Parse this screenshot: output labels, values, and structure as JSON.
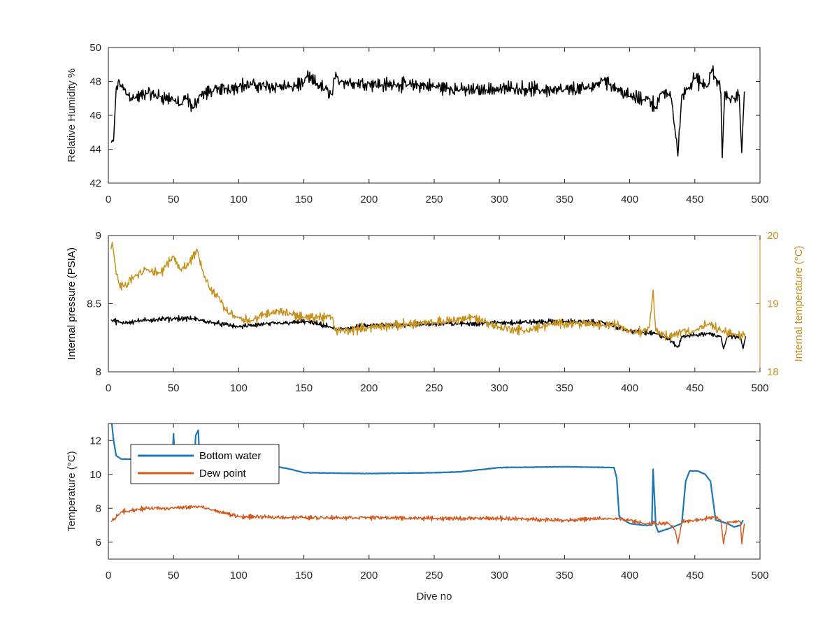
{
  "chart_data": [
    {
      "type": "line",
      "title": "",
      "xlabel": "",
      "ylabel": "Relative Humidity %",
      "xlim": [
        0,
        500
      ],
      "ylim": [
        42,
        50
      ],
      "xticks": [
        "0",
        "50",
        "100",
        "150",
        "200",
        "250",
        "300",
        "350",
        "400",
        "450",
        "500"
      ],
      "yticks": [
        "42",
        "44",
        "46",
        "48",
        "50"
      ],
      "grid": false,
      "series": [
        {
          "color": "#000000",
          "axis": "left",
          "noise": 0.55,
          "points": [
            [
              2,
              44.4
            ],
            [
              4,
              44.5
            ],
            [
              6,
              47.6
            ],
            [
              8,
              48.1
            ],
            [
              10,
              47.7
            ],
            [
              15,
              47.2
            ],
            [
              20,
              47.0
            ],
            [
              30,
              47.3
            ],
            [
              40,
              47.1
            ],
            [
              50,
              46.9
            ],
            [
              55,
              46.6
            ],
            [
              60,
              47.0
            ],
            [
              65,
              46.4
            ],
            [
              70,
              47.2
            ],
            [
              80,
              47.4
            ],
            [
              90,
              47.6
            ],
            [
              100,
              47.7
            ],
            [
              110,
              47.8
            ],
            [
              120,
              47.7
            ],
            [
              130,
              47.7
            ],
            [
              140,
              47.7
            ],
            [
              150,
              47.9
            ],
            [
              152,
              48.3
            ],
            [
              172,
              47.2
            ],
            [
              173,
              48.2
            ],
            [
              180,
              48.0
            ],
            [
              190,
              47.9
            ],
            [
              200,
              47.9
            ],
            [
              210,
              47.8
            ],
            [
              220,
              47.8
            ],
            [
              230,
              47.8
            ],
            [
              250,
              47.7
            ],
            [
              270,
              47.5
            ],
            [
              290,
              47.5
            ],
            [
              310,
              47.6
            ],
            [
              330,
              47.5
            ],
            [
              350,
              47.5
            ],
            [
              370,
              47.6
            ],
            [
              380,
              48.1
            ],
            [
              390,
              47.6
            ],
            [
              400,
              47.1
            ],
            [
              410,
              46.9
            ],
            [
              415,
              47.0
            ],
            [
              420,
              46.4
            ],
            [
              425,
              47.4
            ],
            [
              430,
              47.2
            ],
            [
              432,
              47.0
            ],
            [
              435,
              45.0
            ],
            [
              437,
              43.6
            ],
            [
              440,
              47.2
            ],
            [
              445,
              47.6
            ],
            [
              450,
              48.2
            ],
            [
              455,
              47.9
            ],
            [
              460,
              47.7
            ],
            [
              463,
              48.7
            ],
            [
              466,
              48.2
            ],
            [
              468,
              48.0
            ],
            [
              470,
              47.3
            ],
            [
              471,
              43.5
            ],
            [
              473,
              47.4
            ],
            [
              476,
              47.0
            ],
            [
              480,
              47.0
            ],
            [
              484,
              47.2
            ],
            [
              486,
              43.8
            ],
            [
              488,
              47.4
            ]
          ]
        }
      ]
    },
    {
      "type": "line",
      "title": "",
      "xlabel": "",
      "ylabel": "Internal pressure (PSIA)",
      "y2label": "Internal temperature (°C)",
      "xlim": [
        0,
        500
      ],
      "ylim": [
        8,
        9
      ],
      "y2lim": [
        18,
        20
      ],
      "xticks": [
        "0",
        "50",
        "100",
        "150",
        "200",
        "250",
        "300",
        "350",
        "400",
        "450",
        "500"
      ],
      "yticks": [
        "8",
        "8.5",
        "9"
      ],
      "y2ticks": [
        "18",
        "19",
        "20"
      ],
      "grid": false,
      "series": [
        {
          "color": "#000000",
          "axis": "left",
          "noise": 0.025,
          "points": [
            [
              2,
              8.38
            ],
            [
              10,
              8.36
            ],
            [
              30,
              8.38
            ],
            [
              50,
              8.39
            ],
            [
              65,
              8.39
            ],
            [
              80,
              8.36
            ],
            [
              100,
              8.33
            ],
            [
              120,
              8.35
            ],
            [
              140,
              8.36
            ],
            [
              152,
              8.37
            ],
            [
              170,
              8.33
            ],
            [
              175,
              8.31
            ],
            [
              200,
              8.34
            ],
            [
              250,
              8.35
            ],
            [
              300,
              8.36
            ],
            [
              350,
              8.37
            ],
            [
              380,
              8.36
            ],
            [
              400,
              8.3
            ],
            [
              420,
              8.28
            ],
            [
              430,
              8.24
            ],
            [
              437,
              8.18
            ],
            [
              440,
              8.26
            ],
            [
              450,
              8.27
            ],
            [
              460,
              8.28
            ],
            [
              470,
              8.26
            ],
            [
              472,
              8.17
            ],
            [
              475,
              8.26
            ],
            [
              485,
              8.26
            ],
            [
              487,
              8.17
            ],
            [
              489,
              8.26
            ]
          ]
        },
        {
          "color": "#c7911e",
          "axis": "right",
          "noise": 0.09,
          "points": [
            [
              2,
              19.8
            ],
            [
              3,
              19.9
            ],
            [
              5,
              19.6
            ],
            [
              8,
              19.3
            ],
            [
              12,
              19.25
            ],
            [
              20,
              19.4
            ],
            [
              30,
              19.5
            ],
            [
              40,
              19.45
            ],
            [
              50,
              19.7
            ],
            [
              55,
              19.5
            ],
            [
              62,
              19.6
            ],
            [
              68,
              19.8
            ],
            [
              72,
              19.5
            ],
            [
              78,
              19.2
            ],
            [
              85,
              19.1
            ],
            [
              90,
              18.9
            ],
            [
              100,
              18.8
            ],
            [
              110,
              18.75
            ],
            [
              120,
              18.85
            ],
            [
              130,
              18.9
            ],
            [
              140,
              18.85
            ],
            [
              150,
              18.8
            ],
            [
              172,
              18.8
            ],
            [
              174,
              18.6
            ],
            [
              180,
              18.6
            ],
            [
              200,
              18.65
            ],
            [
              230,
              18.7
            ],
            [
              250,
              18.72
            ],
            [
              280,
              18.8
            ],
            [
              300,
              18.65
            ],
            [
              320,
              18.6
            ],
            [
              340,
              18.7
            ],
            [
              360,
              18.72
            ],
            [
              380,
              18.68
            ],
            [
              390,
              18.7
            ],
            [
              400,
              18.6
            ],
            [
              410,
              18.6
            ],
            [
              415,
              18.65
            ],
            [
              418,
              19.2
            ],
            [
              420,
              18.6
            ],
            [
              430,
              18.5
            ],
            [
              440,
              18.6
            ],
            [
              450,
              18.6
            ],
            [
              460,
              18.7
            ],
            [
              470,
              18.6
            ],
            [
              480,
              18.55
            ],
            [
              489,
              18.5
            ]
          ]
        }
      ]
    },
    {
      "type": "line",
      "title": "",
      "xlabel": "Dive no",
      "ylabel": "Temperature (°C)",
      "xlim": [
        0,
        500
      ],
      "ylim": [
        5,
        13
      ],
      "xticks": [
        "0",
        "50",
        "100",
        "150",
        "200",
        "250",
        "300",
        "350",
        "400",
        "450",
        "500"
      ],
      "yticks": [
        "6",
        "8",
        "10",
        "12"
      ],
      "grid": false,
      "legend_position": "top-left",
      "series": [
        {
          "name": "Bottom water",
          "color": "#1f77b4",
          "axis": "left",
          "noise": 0.02,
          "points": [
            [
              2,
              13.5
            ],
            [
              4,
              12.0
            ],
            [
              6,
              11.1
            ],
            [
              10,
              10.9
            ],
            [
              20,
              10.9
            ],
            [
              40,
              10.8
            ],
            [
              49,
              10.8
            ],
            [
              50,
              12.4
            ],
            [
              51,
              10.8
            ],
            [
              66,
              10.8
            ],
            [
              67,
              12.3
            ],
            [
              69,
              12.6
            ],
            [
              70,
              10.8
            ],
            [
              80,
              10.8
            ],
            [
              100,
              10.7
            ],
            [
              120,
              10.6
            ],
            [
              140,
              10.3
            ],
            [
              150,
              10.1
            ],
            [
              200,
              10.05
            ],
            [
              250,
              10.1
            ],
            [
              270,
              10.15
            ],
            [
              300,
              10.4
            ],
            [
              350,
              10.45
            ],
            [
              388,
              10.4
            ],
            [
              390,
              9.8
            ],
            [
              392,
              7.5
            ],
            [
              396,
              7.3
            ],
            [
              400,
              7.1
            ],
            [
              410,
              7.0
            ],
            [
              417,
              7.0
            ],
            [
              418,
              10.3
            ],
            [
              420,
              7.0
            ],
            [
              422,
              6.6
            ],
            [
              430,
              6.8
            ],
            [
              440,
              7.1
            ],
            [
              443,
              9.6
            ],
            [
              446,
              10.2
            ],
            [
              452,
              10.2
            ],
            [
              458,
              10.0
            ],
            [
              462,
              9.6
            ],
            [
              466,
              7.3
            ],
            [
              475,
              7.1
            ],
            [
              480,
              6.9
            ],
            [
              485,
              7.0
            ],
            [
              487,
              7.3
            ]
          ]
        },
        {
          "name": "Dew point",
          "color": "#d45a1f",
          "axis": "left",
          "noise": 0.16,
          "points": [
            [
              2,
              7.2
            ],
            [
              10,
              7.8
            ],
            [
              30,
              8.0
            ],
            [
              50,
              8.0
            ],
            [
              70,
              8.1
            ],
            [
              80,
              7.9
            ],
            [
              100,
              7.5
            ],
            [
              150,
              7.45
            ],
            [
              200,
              7.45
            ],
            [
              250,
              7.4
            ],
            [
              300,
              7.4
            ],
            [
              350,
              7.3
            ],
            [
              385,
              7.4
            ],
            [
              400,
              7.3
            ],
            [
              410,
              7.1
            ],
            [
              420,
              7.1
            ],
            [
              430,
              7.1
            ],
            [
              435,
              6.7
            ],
            [
              437,
              5.9
            ],
            [
              440,
              7.2
            ],
            [
              450,
              7.3
            ],
            [
              460,
              7.4
            ],
            [
              465,
              7.5
            ],
            [
              470,
              7.3
            ],
            [
              472,
              5.9
            ],
            [
              475,
              7.2
            ],
            [
              485,
              7.2
            ],
            [
              486,
              5.9
            ],
            [
              488,
              7.1
            ]
          ]
        }
      ]
    }
  ]
}
